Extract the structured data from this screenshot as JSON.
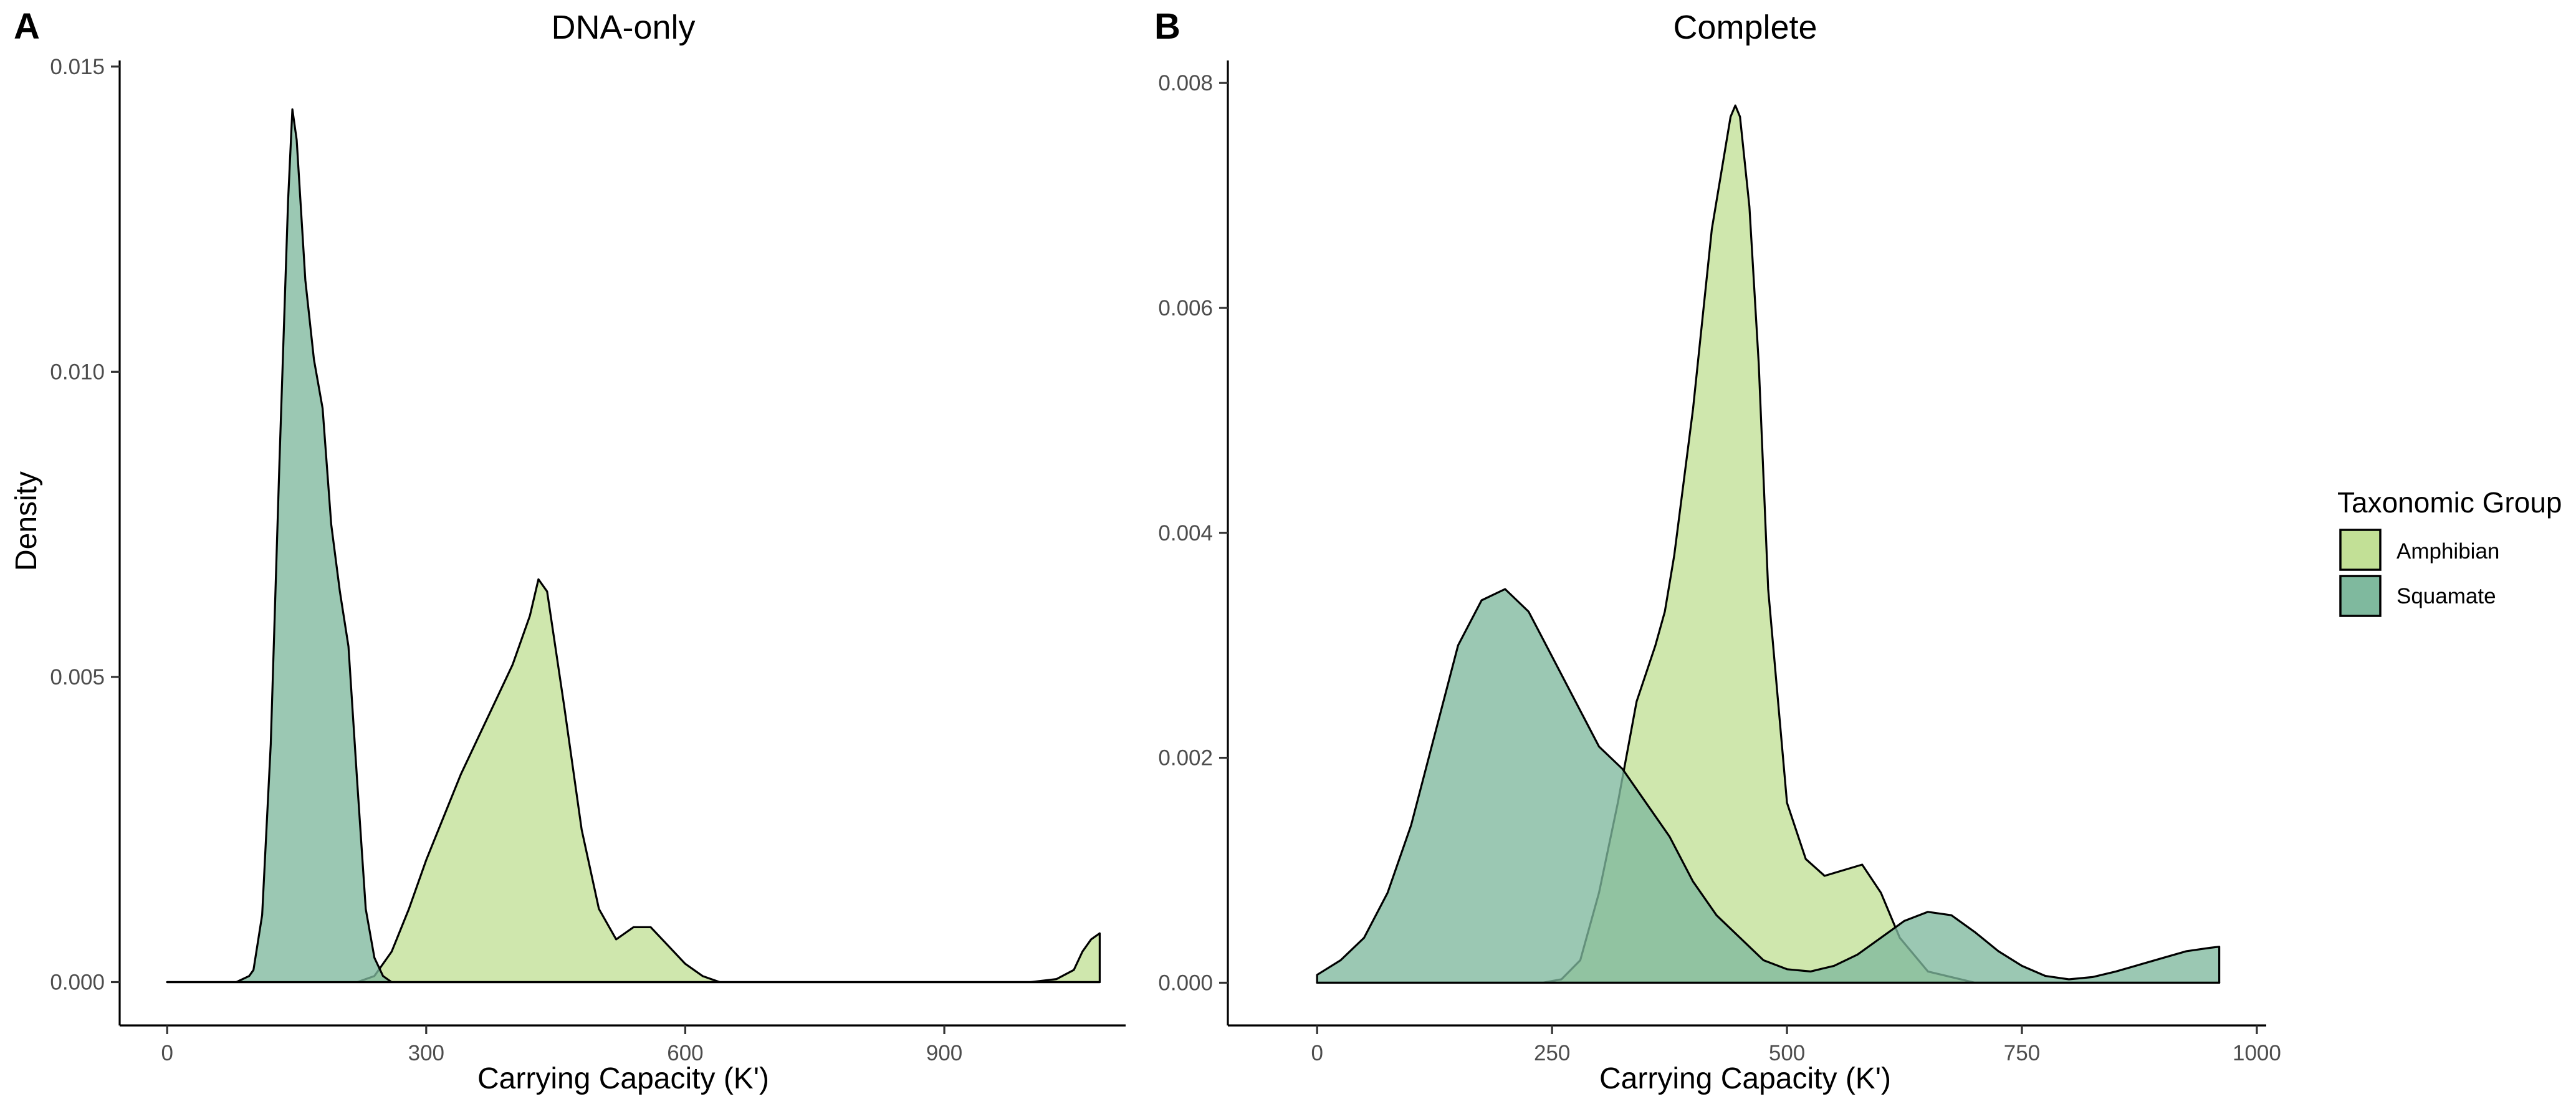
{
  "figure": {
    "ylabel": "Density",
    "legend": {
      "title": "Taxonomic Group",
      "placement": "right",
      "items": [
        {
          "label": "Amphibian",
          "color": "#c2e096"
        },
        {
          "label": "Squamate",
          "color": "#7fb99e"
        }
      ]
    }
  },
  "chart_data": [
    {
      "type": "area",
      "panel_letter": "A",
      "title": "DNA-only",
      "xlabel": "Carrying Capacity (K')",
      "ylabel": "Density",
      "xlim": [
        -55,
        1110
      ],
      "ylim": [
        -0.00071,
        0.0151
      ],
      "xticks": [
        0,
        300,
        600,
        900
      ],
      "xtick_labels": [
        "0",
        "300",
        "600",
        "900"
      ],
      "yticks": [
        0,
        0.005,
        0.01,
        0.015
      ],
      "ytick_labels": [
        "0.000",
        "0.005",
        "0.010",
        "0.015"
      ],
      "grid": false,
      "series": [
        {
          "name": "Amphibian",
          "color": "#c2e096",
          "x": [
            0,
            220,
            240,
            260,
            280,
            300,
            320,
            340,
            360,
            380,
            400,
            420,
            430,
            440,
            460,
            480,
            500,
            520,
            540,
            560,
            580,
            600,
            620,
            640,
            660,
            1000,
            1030,
            1050,
            1060,
            1070,
            1080
          ],
          "y": [
            0,
            0,
            0.0001,
            0.0005,
            0.0012,
            0.002,
            0.0027,
            0.0034,
            0.004,
            0.0046,
            0.0052,
            0.006,
            0.0066,
            0.0064,
            0.0045,
            0.0025,
            0.0012,
            0.0007,
            0.0009,
            0.0009,
            0.0006,
            0.0003,
            0.0001,
            0,
            0,
            0,
            5e-05,
            0.0002,
            0.0005,
            0.0007,
            0.0008
          ]
        },
        {
          "name": "Squamate",
          "color": "#7fb99e",
          "x": [
            0,
            80,
            95,
            100,
            110,
            120,
            130,
            140,
            145,
            150,
            160,
            170,
            180,
            190,
            200,
            210,
            220,
            230,
            240,
            250,
            260,
            1080
          ],
          "y": [
            0,
            0,
            0.0001,
            0.0002,
            0.0011,
            0.0039,
            0.0085,
            0.0128,
            0.0143,
            0.0138,
            0.0115,
            0.0102,
            0.0094,
            0.0075,
            0.0064,
            0.0055,
            0.0033,
            0.0012,
            0.0004,
            0.0001,
            0,
            0
          ]
        }
      ]
    },
    {
      "type": "area",
      "panel_letter": "B",
      "title": "Complete",
      "xlabel": "Carrying Capacity (K')",
      "ylabel": "",
      "xlim": [
        -95,
        1010
      ],
      "ylim": [
        -0.00038,
        0.0082
      ],
      "xticks": [
        0,
        250,
        500,
        750,
        1000
      ],
      "xtick_labels": [
        "0",
        "250",
        "500",
        "750",
        "1000"
      ],
      "yticks": [
        0,
        0.002,
        0.004,
        0.006,
        0.008
      ],
      "ytick_labels": [
        "0.000",
        "0.002",
        "0.004",
        "0.006",
        "0.008"
      ],
      "grid": false,
      "series": [
        {
          "name": "Amphibian",
          "color": "#c2e096",
          "x": [
            0,
            240,
            260,
            280,
            300,
            320,
            340,
            360,
            370,
            380,
            400,
            420,
            440,
            445,
            450,
            460,
            470,
            480,
            500,
            520,
            540,
            560,
            580,
            600,
            620,
            650,
            700,
            960
          ],
          "y": [
            0,
            0,
            3e-05,
            0.0002,
            0.0008,
            0.0016,
            0.0025,
            0.003,
            0.0033,
            0.0038,
            0.0051,
            0.0067,
            0.0077,
            0.0078,
            0.0077,
            0.0069,
            0.0055,
            0.0035,
            0.0016,
            0.0011,
            0.00095,
            0.001,
            0.00105,
            0.0008,
            0.0004,
            0.0001,
            0,
            0
          ]
        },
        {
          "name": "Squamate",
          "color": "#7fb99e",
          "x": [
            0,
            25,
            50,
            75,
            100,
            125,
            150,
            175,
            200,
            225,
            250,
            275,
            300,
            325,
            350,
            375,
            400,
            425,
            450,
            475,
            500,
            525,
            550,
            575,
            600,
            625,
            650,
            675,
            700,
            725,
            750,
            775,
            800,
            825,
            850,
            875,
            900,
            925,
            950,
            960
          ],
          "y": [
            7e-05,
            0.0002,
            0.0004,
            0.0008,
            0.0014,
            0.0022,
            0.003,
            0.0034,
            0.0035,
            0.0033,
            0.0029,
            0.0025,
            0.0021,
            0.0019,
            0.0016,
            0.0013,
            0.0009,
            0.0006,
            0.0004,
            0.0002,
            0.00012,
            0.0001,
            0.00015,
            0.00025,
            0.0004,
            0.00055,
            0.00063,
            0.0006,
            0.00045,
            0.00028,
            0.00015,
            6e-05,
            3e-05,
            5e-05,
            0.0001,
            0.00016,
            0.00022,
            0.00028,
            0.00031,
            0.00032
          ]
        }
      ]
    }
  ]
}
